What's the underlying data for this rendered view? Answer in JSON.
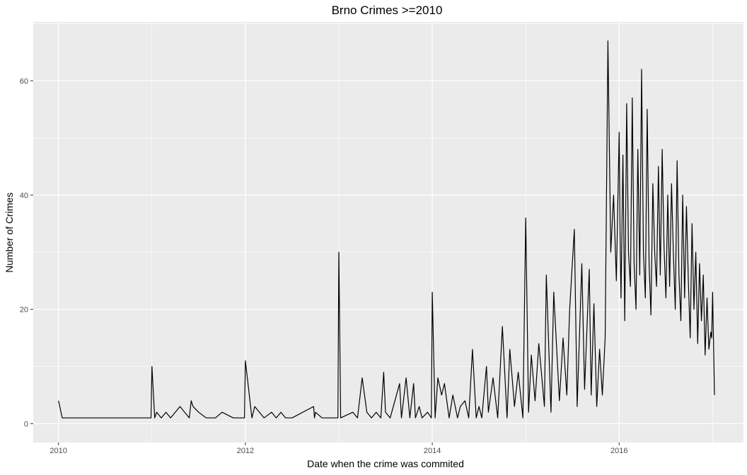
{
  "chart_data": {
    "type": "line",
    "title": "Brno Crimes >=2010",
    "xlabel": "Date when the crime was commited",
    "ylabel": "Number of Crimes",
    "xlim": [
      2009.73,
      2017.33
    ],
    "ylim": [
      -3.3,
      70.3
    ],
    "x_ticks": [
      2010,
      2012,
      2014,
      2016
    ],
    "x_tick_labels": [
      "2010",
      "2012",
      "2014",
      "2016"
    ],
    "y_ticks": [
      0,
      20,
      40,
      60
    ],
    "y_tick_labels": [
      "0",
      "20",
      "40",
      "60"
    ],
    "grid": true,
    "background": "#ebebeb",
    "grid_color": "#ffffff",
    "line_color": "#000000",
    "series": [
      {
        "x": [
          2010.0,
          2010.04,
          2010.99,
          2011.0,
          2011.03,
          2011.05,
          2011.1,
          2011.15,
          2011.2,
          2011.3,
          2011.4,
          2011.42,
          2011.44,
          2011.5,
          2011.58,
          2011.68,
          2011.75,
          2011.87,
          2011.99,
          2012.0,
          2012.07,
          2012.1,
          2012.2,
          2012.28,
          2012.33,
          2012.38,
          2012.43,
          2012.5,
          2012.73,
          2012.74,
          2012.75,
          2012.82,
          2012.9,
          2012.99,
          2013.0,
          2013.02,
          2013.15,
          2013.2,
          2013.25,
          2013.3,
          2013.35,
          2013.4,
          2013.45,
          2013.48,
          2013.5,
          2013.55,
          2013.65,
          2013.67,
          2013.72,
          2013.76,
          2013.8,
          2013.82,
          2013.86,
          2013.89,
          2013.95,
          2013.99,
          2014.0,
          2014.03,
          2014.06,
          2014.1,
          2014.13,
          2014.18,
          2014.22,
          2014.27,
          2014.3,
          2014.35,
          2014.39,
          2014.43,
          2014.47,
          2014.5,
          2014.53,
          2014.58,
          2014.6,
          2014.65,
          2014.7,
          2014.75,
          2014.8,
          2014.83,
          2014.88,
          2014.92,
          2014.97,
          2015.0,
          2015.03,
          2015.06,
          2015.1,
          2015.14,
          2015.2,
          2015.22,
          2015.27,
          2015.3,
          2015.36,
          2015.4,
          2015.44,
          2015.47,
          2015.52,
          2015.55,
          2015.6,
          2015.63,
          2015.68,
          2015.7,
          2015.73,
          2015.76,
          2015.79,
          2015.82,
          2015.85,
          2015.88,
          2015.91,
          2015.94,
          2015.97,
          2016.0,
          2016.01,
          2016.02,
          2016.04,
          2016.06,
          2016.08,
          2016.1,
          2016.12,
          2016.14,
          2016.16,
          2016.18,
          2016.2,
          2016.22,
          2016.24,
          2016.26,
          2016.28,
          2016.3,
          2016.32,
          2016.34,
          2016.36,
          2016.38,
          2016.4,
          2016.42,
          2016.44,
          2016.46,
          2016.48,
          2016.5,
          2016.52,
          2016.54,
          2016.56,
          2016.58,
          2016.6,
          2016.62,
          2016.64,
          2016.66,
          2016.68,
          2016.7,
          2016.72,
          2016.74,
          2016.76,
          2016.78,
          2016.8,
          2016.82,
          2016.84,
          2016.86,
          2016.88,
          2016.9,
          2016.92,
          2016.94,
          2016.96,
          2016.98,
          2016.99,
          2017.0,
          2017.02
        ],
        "values": [
          4,
          1,
          1,
          10,
          1,
          2,
          1,
          2,
          1,
          3,
          1,
          4,
          3,
          2,
          1,
          1,
          2,
          1,
          1,
          11,
          1,
          3,
          1,
          2,
          1,
          2,
          1,
          1,
          3,
          1,
          2,
          1,
          1,
          1,
          30,
          1,
          2,
          1,
          8,
          2,
          1,
          2,
          1,
          9,
          2,
          1,
          7,
          1,
          8,
          1,
          7,
          1,
          3,
          1,
          2,
          1,
          23,
          1,
          8,
          5,
          7,
          1,
          5,
          1,
          3,
          4,
          1,
          13,
          1,
          3,
          1,
          10,
          2,
          8,
          1,
          17,
          1,
          13,
          3,
          9,
          1,
          36,
          2,
          12,
          4,
          14,
          3,
          26,
          2,
          23,
          4,
          15,
          5,
          20,
          34,
          3,
          28,
          6,
          27,
          5,
          21,
          3,
          13,
          5,
          15,
          67,
          30,
          40,
          25,
          51,
          32,
          22,
          47,
          18,
          56,
          30,
          24,
          57,
          28,
          20,
          48,
          26,
          62,
          30,
          22,
          55,
          28,
          19,
          42,
          30,
          24,
          45,
          26,
          48,
          31,
          22,
          40,
          24,
          42,
          30,
          20,
          46,
          26,
          18,
          40,
          22,
          38,
          25,
          15,
          35,
          20,
          30,
          14,
          28,
          18,
          26,
          12,
          22,
          13,
          16,
          15,
          23,
          5
        ]
      }
    ]
  }
}
